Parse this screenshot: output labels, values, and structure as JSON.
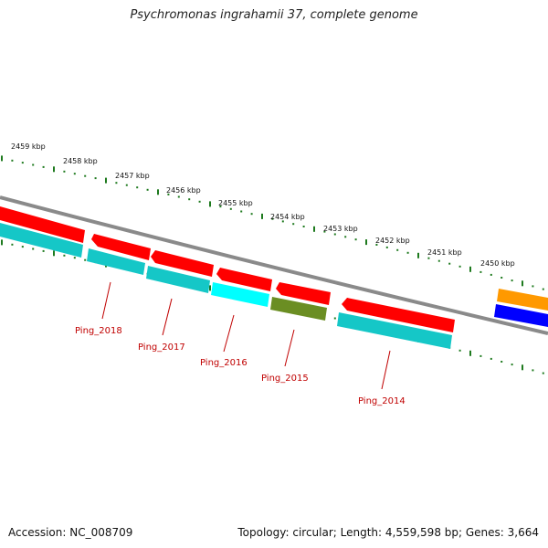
{
  "title": "Psychromonas ingrahamii 37, complete genome",
  "accession": "Accession: NC_008709",
  "summary": "Topology: circular; Length: 4,559,598 bp; Genes: 3,664",
  "colors": {
    "backbone": "#8a8a8a",
    "ticks": "#1e7a1e",
    "forward_gene": "#ff0000",
    "reverse_gene": "#15c7c7",
    "reverse_gene_bright": "#00ffff",
    "olive_gene": "#6b8e23",
    "orange_gene": "#ff9900",
    "blue_gene": "#0000ff",
    "label": "#c00000"
  },
  "kbp_labels": [
    "2459 kbp",
    "2458 kbp",
    "2457 kbp",
    "2456 kbp",
    "2455 kbp",
    "2454 kbp",
    "2453 kbp",
    "2452 kbp",
    "2451 kbp",
    "2450 kbp"
  ],
  "gene_labels": [
    "Ping_2018",
    "Ping_2017",
    "Ping_2016",
    "Ping_2015",
    "Ping_2014"
  ]
}
